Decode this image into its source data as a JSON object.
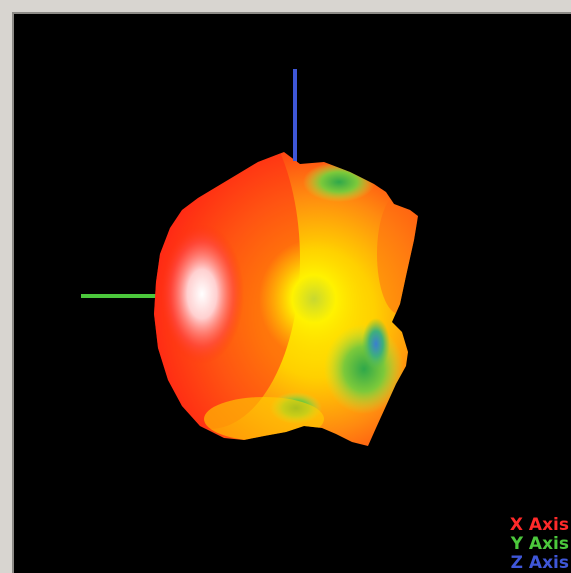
{
  "legend": {
    "x_axis": "X Axis",
    "y_axis": "Y Axis",
    "z_axis": "Z Axis"
  },
  "colors": {
    "background": "#000000",
    "x_axis": "#ff2a2a",
    "y_axis": "#4cc83c",
    "z_axis": "#3f57d8",
    "surface_high": "#ffffff",
    "surface_mid": "#ff3a1a",
    "surface_low": "#ffe400",
    "surface_lowest": "#39b54a"
  }
}
